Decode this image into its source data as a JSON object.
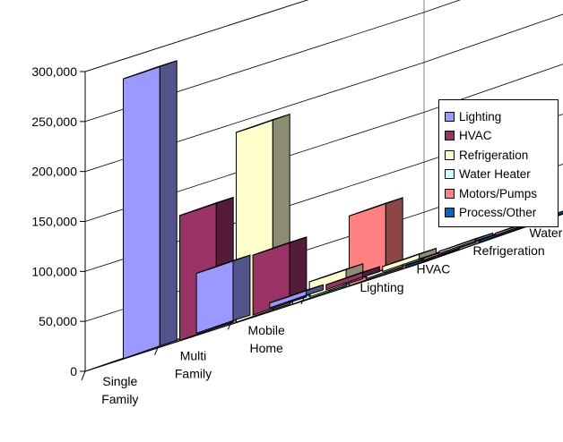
{
  "chart_data": {
    "type": "bar3d",
    "categories": [
      "Single Family",
      "Multi Family",
      "Mobile Home"
    ],
    "category_lines": [
      [
        "Single",
        "Family"
      ],
      [
        "Multi",
        "Family"
      ],
      [
        "Mobile",
        "Home"
      ]
    ],
    "y_ticks": [
      "0",
      "50,000",
      "100,000",
      "150,000",
      "200,000",
      "250,000",
      "300,000"
    ],
    "ylim": [
      0,
      300000
    ],
    "series": [
      {
        "name": "Lighting",
        "color": "#9999ff",
        "values": [
          280000,
          60000,
          5000
        ]
      },
      {
        "name": "HVAC",
        "color": "#993366",
        "values": [
          125000,
          60000,
          5000
        ]
      },
      {
        "name": "Refrigeration",
        "color": "#ffffcc",
        "values": [
          190000,
          15000,
          5000
        ]
      },
      {
        "name": "Water Heater",
        "color": "#ccffff",
        "values": [
          8000,
          3000,
          2000
        ]
      },
      {
        "name": "Motors/Pumps",
        "color": "#ff8080",
        "values": [
          70000,
          2000,
          2000
        ]
      },
      {
        "name": "Process/Other",
        "color": "#0066cc",
        "values": [
          2000,
          2000,
          2000
        ]
      }
    ],
    "grid": true,
    "legend": "right"
  }
}
